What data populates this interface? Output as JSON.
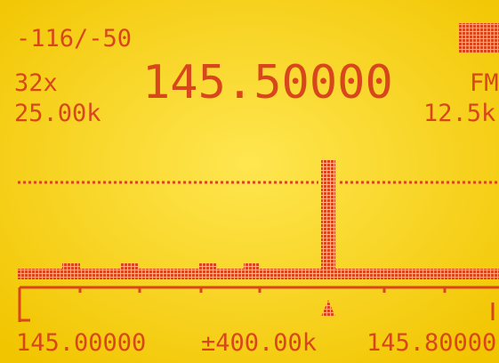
{
  "status": {
    "signal": "-116/-50"
  },
  "frequency": {
    "zoom": "32x",
    "step": "25.00k",
    "value": "145.50000",
    "mode": "FM",
    "bandwidth": "12.5k"
  },
  "scale": {
    "start": "145.00000",
    "span": "±400.00k",
    "end": "145.80000"
  }
}
